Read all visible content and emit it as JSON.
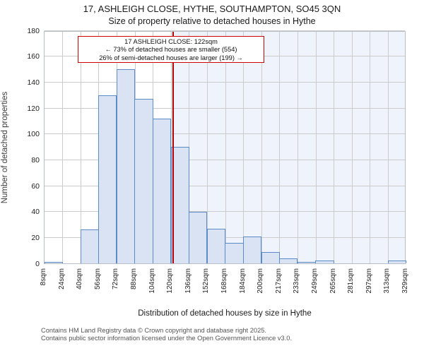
{
  "title": "17, ASHLEIGH CLOSE, HYTHE, SOUTHAMPTON, SO45 3QN",
  "subtitle": "Size of property relative to detached houses in Hythe",
  "annotation": {
    "line1": "17 ASHLEIGH CLOSE: 122sqm",
    "line2": "← 73% of detached houses are smaller (554)",
    "line3": "26% of semi-detached houses are larger (199) →"
  },
  "chart_data": {
    "type": "bar",
    "title": "17, ASHLEIGH CLOSE, HYTHE, SOUTHAMPTON, SO45 3QN",
    "subtitle": "Size of property relative to detached houses in Hythe",
    "xlabel": "Distribution of detached houses by size in Hythe",
    "ylabel": "Number of detached properties",
    "ylim": [
      0,
      180
    ],
    "yticks": [
      0,
      20,
      40,
      60,
      80,
      100,
      120,
      140,
      160,
      180
    ],
    "bin_edges_sqm": [
      8,
      24,
      40,
      56,
      72,
      88,
      104,
      120,
      136,
      152,
      168,
      184,
      200,
      217,
      233,
      249,
      265,
      281,
      297,
      313,
      329
    ],
    "xtick_labels": [
      "8sqm",
      "24sqm",
      "40sqm",
      "56sqm",
      "72sqm",
      "88sqm",
      "104sqm",
      "120sqm",
      "136sqm",
      "152sqm",
      "168sqm",
      "184sqm",
      "200sqm",
      "217sqm",
      "233sqm",
      "249sqm",
      "265sqm",
      "281sqm",
      "297sqm",
      "313sqm",
      "329sqm"
    ],
    "values": [
      1,
      0,
      26,
      130,
      150,
      127,
      112,
      90,
      40,
      27,
      16,
      21,
      9,
      4,
      1,
      2,
      0,
      0,
      0,
      2
    ],
    "marker": {
      "value_sqm": 122,
      "label": "17 ASHLEIGH CLOSE: 122sqm"
    },
    "grid": true,
    "legend": null,
    "colors": {
      "bar_fill": "#d9e3f3",
      "bar_edge": "#5b8cc8",
      "marker_line": "#b40000",
      "annotation_border": "#cc0000",
      "highlight_region": "#eff3fb",
      "gridline": "#cccccc"
    }
  },
  "footer": {
    "line1": "Contains HM Land Registry data © Crown copyright and database right 2025.",
    "line2": "Contains public sector information licensed under the Open Government Licence v3.0."
  }
}
